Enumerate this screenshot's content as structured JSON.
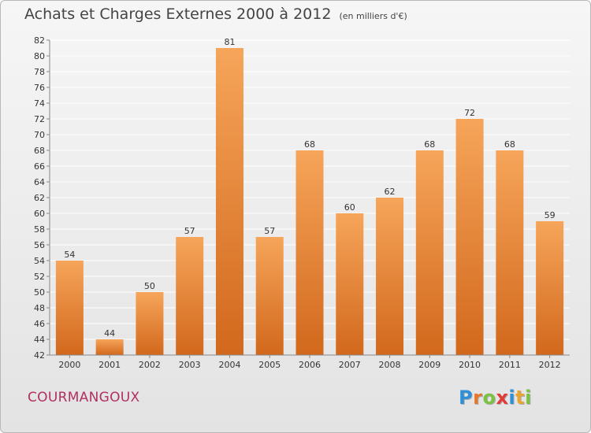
{
  "title": "Achats et Charges Externes 2000 à 2012",
  "unit": "(en milliers d'€)",
  "commune": "COURMANGOUX",
  "logo": {
    "text": "Proxiti",
    "letters": [
      {
        "char": "P",
        "color": "#2f8fd8"
      },
      {
        "char": "r",
        "color": "#e8772e"
      },
      {
        "char": "o",
        "color": "#7cc242"
      },
      {
        "char": "x",
        "color": "#e23a3a"
      },
      {
        "char": "i",
        "color": "#2f8fd8"
      },
      {
        "char": "t",
        "color": "#e8a52e"
      },
      {
        "char": "i",
        "color": "#7cc242"
      }
    ]
  },
  "colors": {
    "bar_light": "#f6a55a",
    "bar_dark": "#d2681c",
    "axis": "#888888",
    "grid": "#ffffff"
  },
  "chart_data": {
    "type": "bar",
    "categories": [
      "2000",
      "2001",
      "2002",
      "2003",
      "2004",
      "2005",
      "2006",
      "2007",
      "2008",
      "2009",
      "2010",
      "2011",
      "2012"
    ],
    "values": [
      54,
      44,
      50,
      57,
      81,
      57,
      68,
      60,
      62,
      68,
      72,
      68,
      59
    ],
    "ylim": [
      42,
      82
    ],
    "ytick_step": 2,
    "yticks": [
      42,
      44,
      46,
      48,
      50,
      52,
      54,
      56,
      58,
      60,
      62,
      64,
      66,
      68,
      70,
      72,
      74,
      76,
      78,
      80,
      82
    ],
    "grid": true,
    "data_labels": true
  }
}
